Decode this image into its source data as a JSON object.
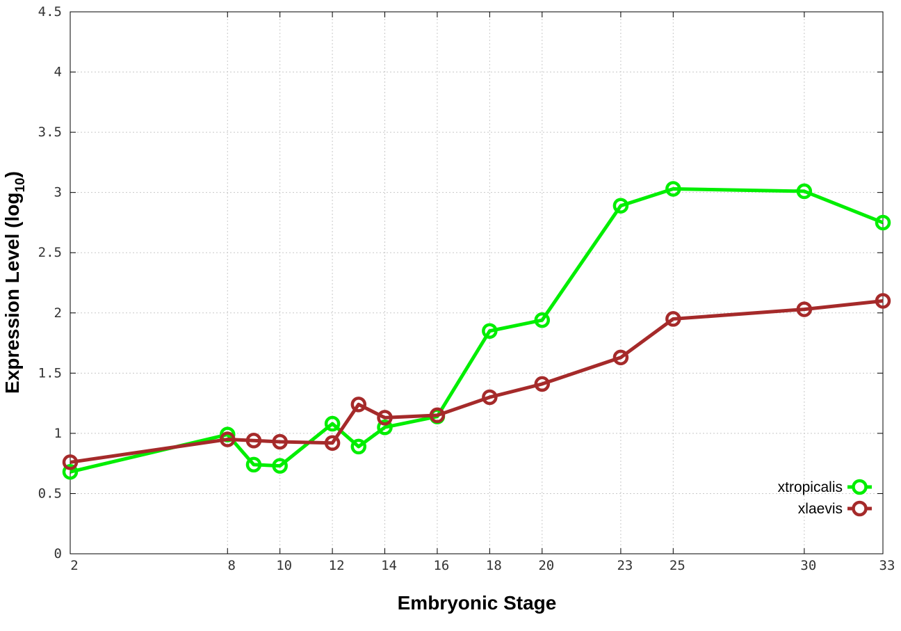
{
  "chart_data": {
    "type": "line",
    "xlabel": "Embryonic Stage",
    "ylabel_main": "Expression Level (log",
    "ylabel_sub": "10",
    "ylabel_close": ")",
    "xlim": [
      2,
      33
    ],
    "ylim": [
      0,
      4.5
    ],
    "grid": true,
    "legend_position": "bottom-right",
    "x_ticks": [
      {
        "value": 2,
        "label": "2"
      },
      {
        "value": 8,
        "label": "8"
      },
      {
        "value": 10,
        "label": "10"
      },
      {
        "value": 12,
        "label": "12"
      },
      {
        "value": 14,
        "label": "14"
      },
      {
        "value": 16,
        "label": "16"
      },
      {
        "value": 18,
        "label": "18"
      },
      {
        "value": 20,
        "label": "20"
      },
      {
        "value": 23,
        "label": "23"
      },
      {
        "value": 25,
        "label": "25"
      },
      {
        "value": 30,
        "label": "30"
      },
      {
        "value": 33,
        "label": "33"
      }
    ],
    "y_ticks": [
      {
        "value": 0,
        "label": "0"
      },
      {
        "value": 0.5,
        "label": "0.5"
      },
      {
        "value": 1,
        "label": "1"
      },
      {
        "value": 1.5,
        "label": "1.5"
      },
      {
        "value": 2,
        "label": "2"
      },
      {
        "value": 2.5,
        "label": "2.5"
      },
      {
        "value": 3,
        "label": "3"
      },
      {
        "value": 3.5,
        "label": "3.5"
      },
      {
        "value": 4,
        "label": "4"
      },
      {
        "value": 4.5,
        "label": "4.5"
      }
    ],
    "series": [
      {
        "name": "xtropicalis",
        "color": "#00ee00",
        "x": [
          2,
          8,
          9,
          10,
          12,
          13,
          14,
          16,
          18,
          20,
          23,
          25,
          30,
          33
        ],
        "values": [
          0.68,
          0.99,
          0.74,
          0.73,
          1.08,
          0.89,
          1.05,
          1.14,
          1.85,
          1.94,
          2.89,
          3.03,
          3.01,
          2.75
        ]
      },
      {
        "name": "xlaevis",
        "color": "#a52a2a",
        "x": [
          2,
          8,
          9,
          10,
          12,
          13,
          14,
          16,
          18,
          20,
          23,
          25,
          30,
          33
        ],
        "values": [
          0.76,
          0.95,
          0.94,
          0.93,
          0.92,
          1.24,
          1.13,
          1.15,
          1.3,
          1.41,
          1.63,
          1.95,
          2.03,
          2.1
        ]
      }
    ]
  }
}
